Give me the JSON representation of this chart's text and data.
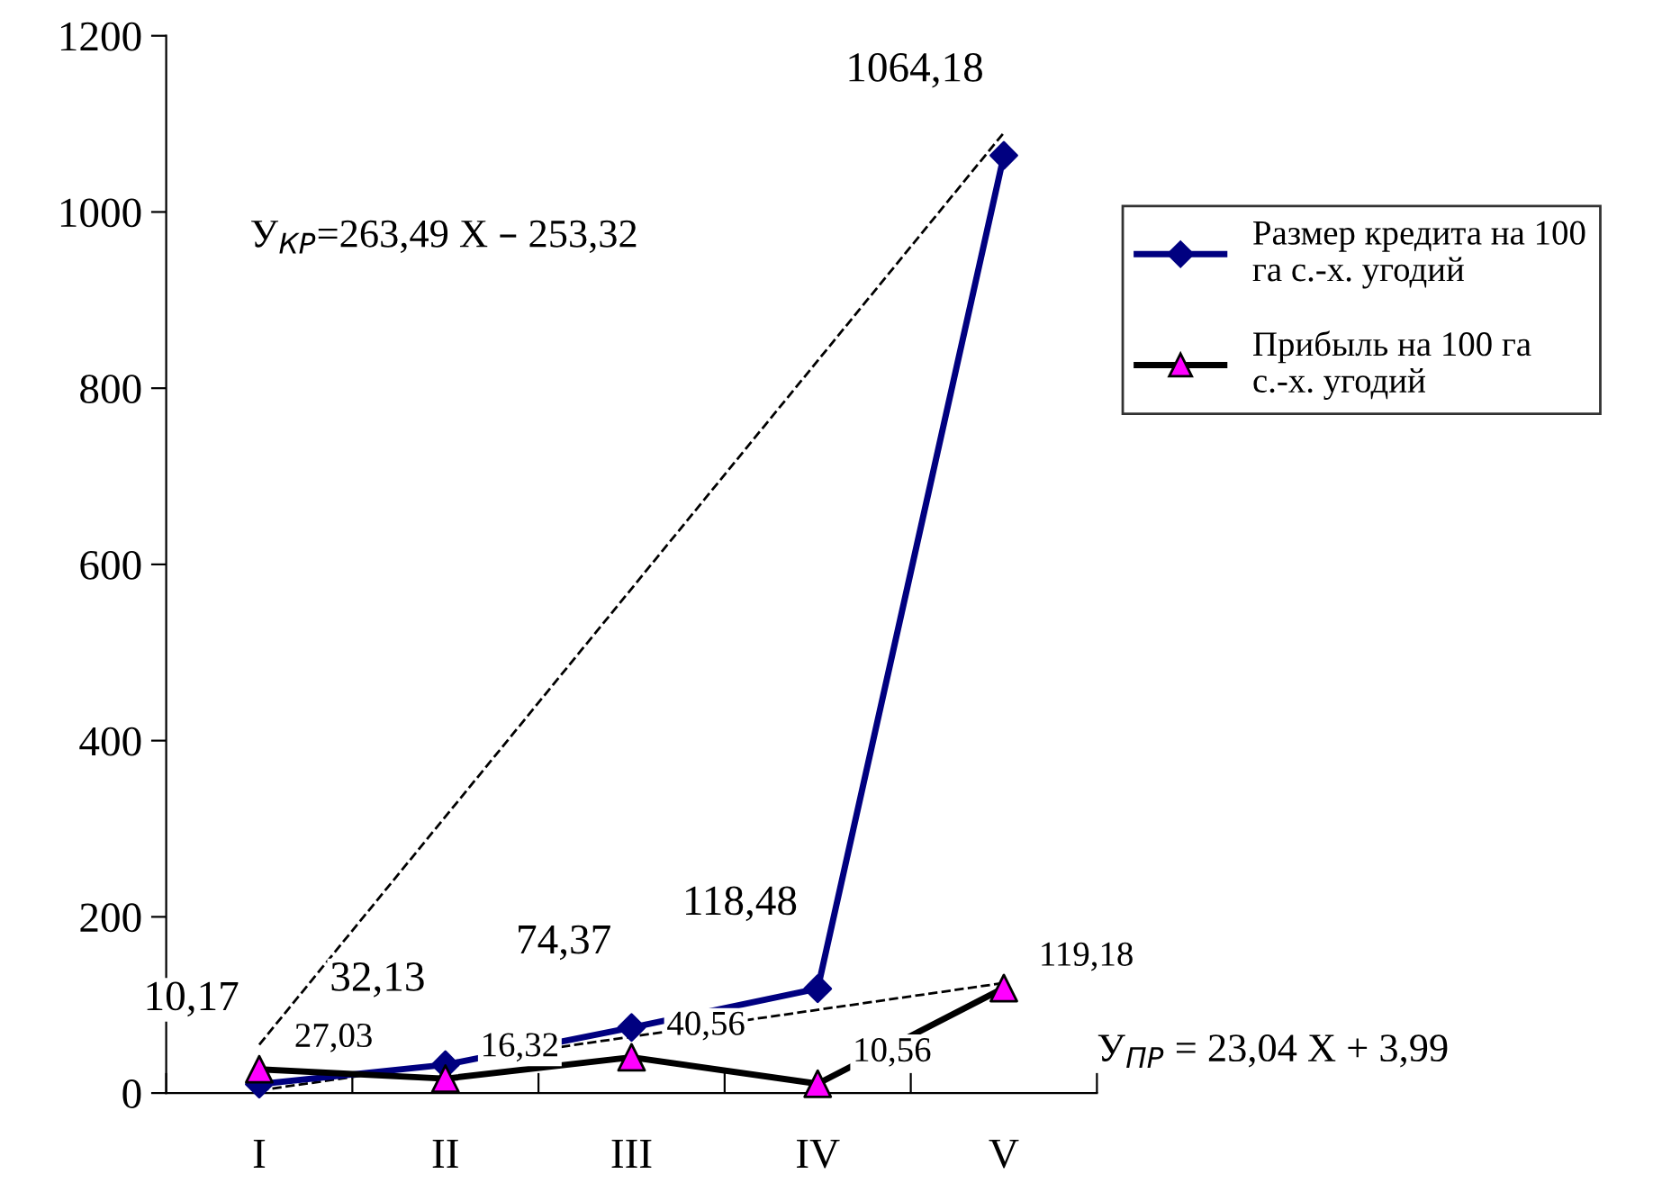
{
  "chart_data": {
    "type": "line",
    "categories": [
      "I",
      "II",
      "III",
      "IV",
      "V"
    ],
    "series": [
      {
        "name": "Размер кредита на 100 га с.-х. угодий",
        "color": "#000080",
        "marker": "diamond",
        "values": [
          10.17,
          32.13,
          74.37,
          118.48,
          1064.18
        ],
        "value_labels": [
          "10,17",
          "32,13",
          "74,37",
          "118,48",
          "1064,18"
        ]
      },
      {
        "name": "Прибыль на 100 га с.-х. угодий",
        "color": "#000000",
        "marker": "triangle",
        "colors": [
          "#ff00ff",
          "#ff00ff",
          "#ff00ff",
          "#ff00ff",
          "#ff00ff"
        ],
        "values": [
          27.03,
          16.32,
          40.56,
          10.56,
          119.18
        ],
        "value_labels": [
          "27,03",
          "16,32",
          "40,56",
          "10,56",
          "119,18"
        ]
      },
      {
        "type": "line",
        "x": [
          "I",
          "V"
        ],
        "values": [
          55,
          1090
        ],
        "color": "#000000",
        "line_style": "dashed",
        "marker": "none"
      },
      {
        "type": "line",
        "x": [
          "I",
          "V"
        ],
        "values": [
          3,
          125
        ],
        "color": "#000000",
        "line_style": "dashed",
        "marker": "none"
      }
    ],
    "ylim": [
      0,
      1200
    ],
    "yticks": [
      0,
      200,
      400,
      600,
      800,
      1000,
      1200
    ],
    "grid": false,
    "legend": "right",
    "annotations": [
      "У$_{КР}$=263,49 Х – 253,32",
      "У$_{ПР}$ = 23,04 Х + 3,99"
    ]
  }
}
